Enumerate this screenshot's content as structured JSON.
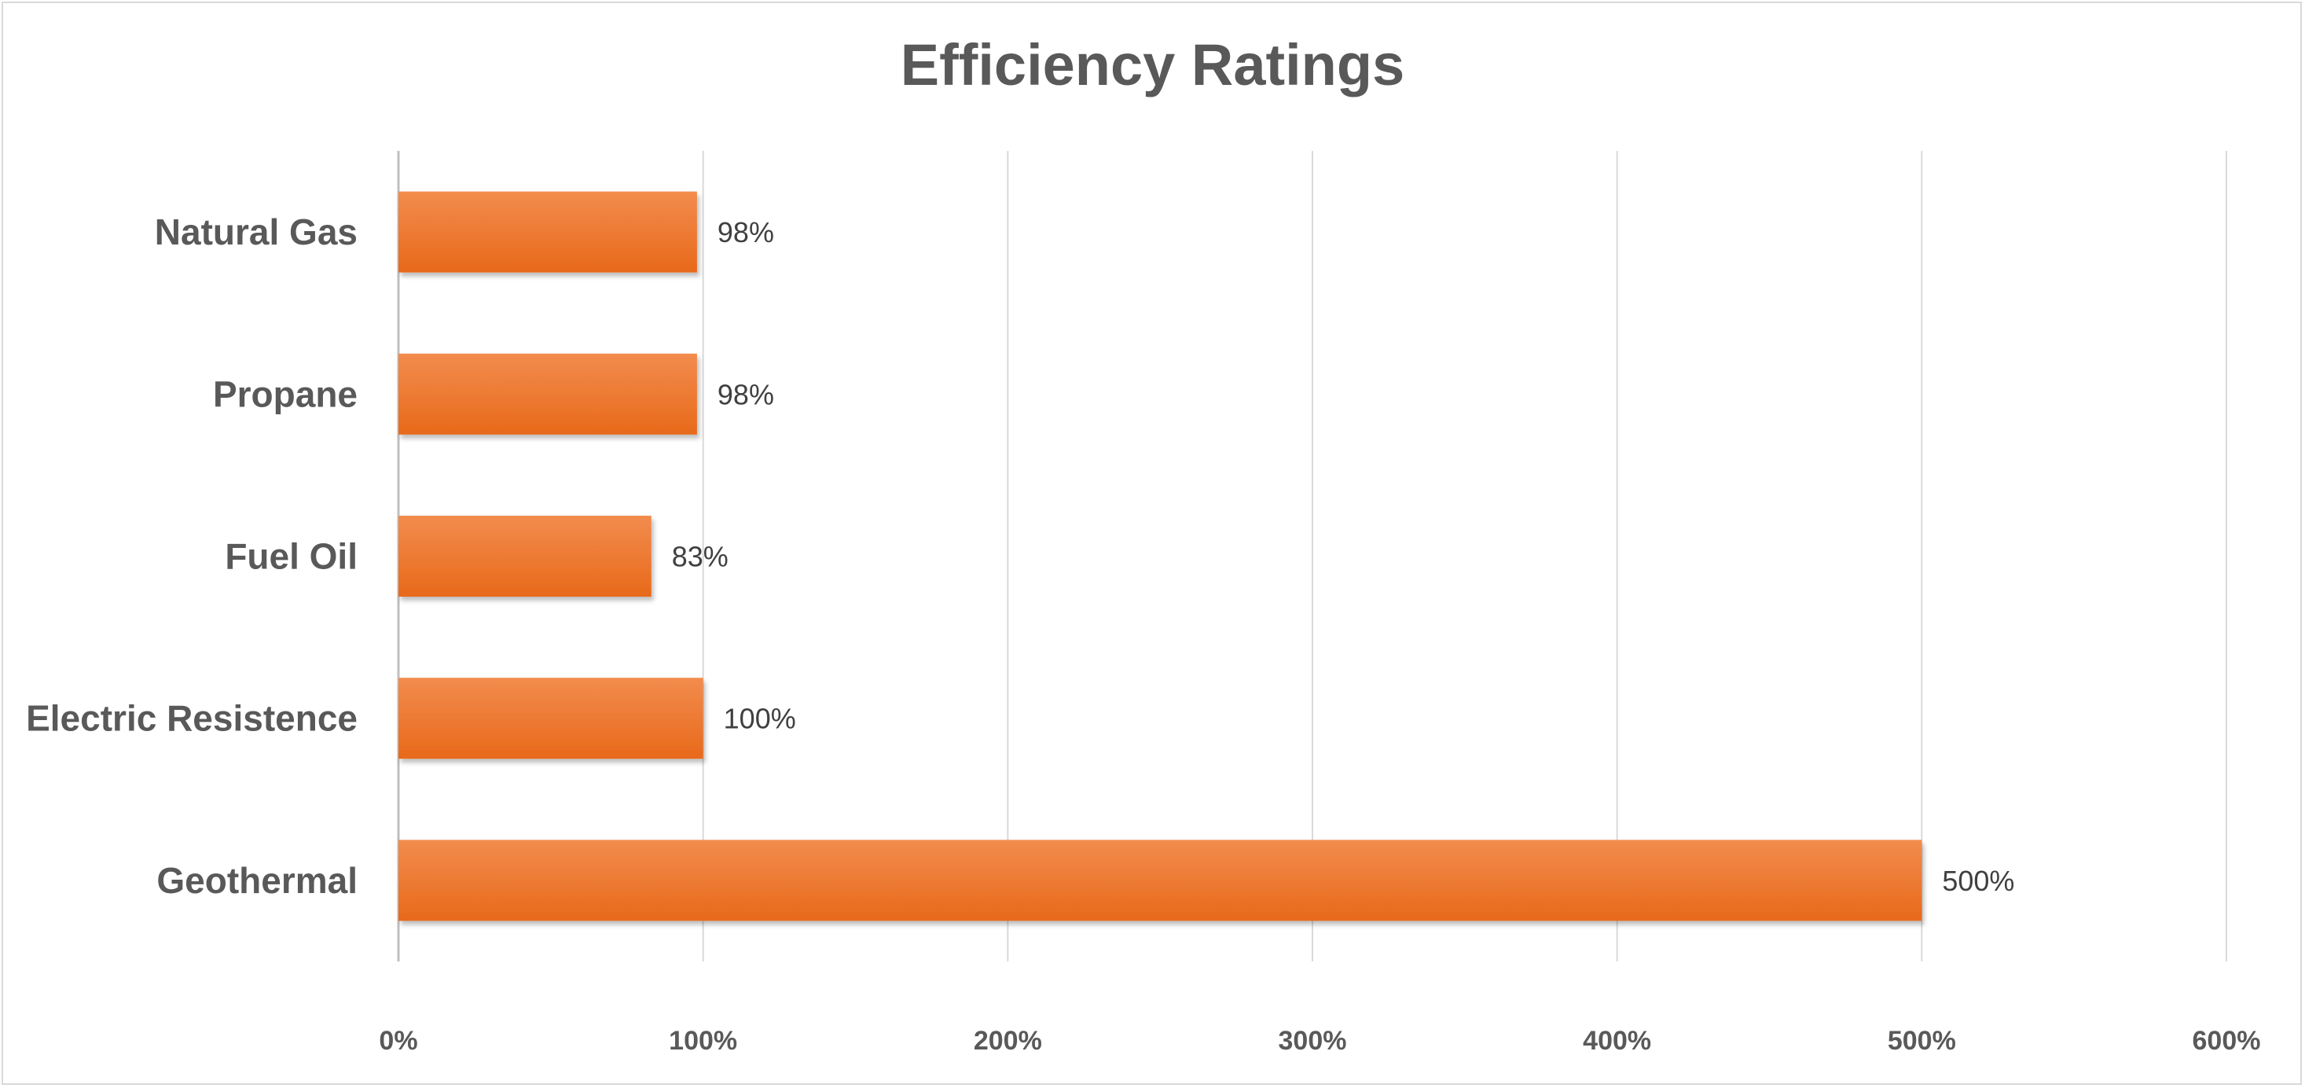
{
  "chart_data": {
    "type": "bar",
    "orientation": "horizontal",
    "title": "Efficiency Ratings",
    "categories": [
      "Natural Gas",
      "Propane",
      "Fuel Oil",
      "Electric Resistence",
      "Geothermal"
    ],
    "values": [
      98,
      98,
      83,
      100,
      500
    ],
    "data_labels": [
      "98%",
      "98%",
      "83%",
      "100%",
      "500%"
    ],
    "x_ticks": [
      "0%",
      "100%",
      "200%",
      "300%",
      "400%",
      "500%",
      "600%"
    ],
    "xlim": [
      0,
      600
    ],
    "grid": true,
    "legend": "none",
    "bar_color": "#ED7D31"
  }
}
